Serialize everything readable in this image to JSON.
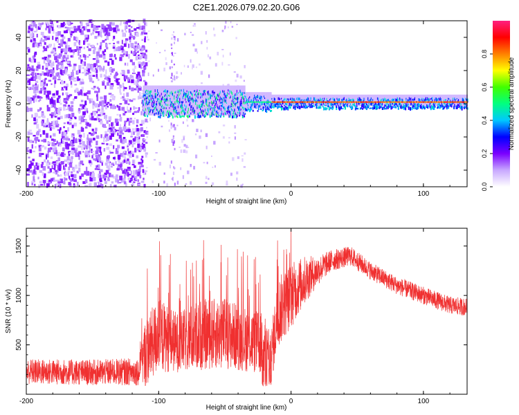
{
  "title": "C2E1.2026.079.02.20.G06",
  "colors": {
    "snr_line": "#f03030",
    "axis": "#000000",
    "background": "#ffffff"
  },
  "chart_data": [
    {
      "type": "heatmap",
      "name": "spectrogram",
      "xlabel": "Height of straight line (km)",
      "ylabel": "Frequency (Hz)",
      "xlim": [
        -200,
        133
      ],
      "ylim": [
        -50,
        50
      ],
      "x_ticks": [
        -200,
        -100,
        0,
        100
      ],
      "y_ticks": [
        -40,
        -20,
        0,
        20,
        40
      ],
      "grid": false,
      "description_of_signal": {
        "noise_region_x": [
          -200,
          -110
        ],
        "sparse_region_x": [
          -110,
          -35
        ],
        "carrier_start_x": -112,
        "carrier_end_x": 133,
        "carrier_center_hz": 0,
        "sidelobe_hz": 2
      },
      "colorbar": {
        "label": "Normalized spectral amplitude",
        "range": [
          0,
          1
        ],
        "ticks": [
          "0.0",
          "0.2",
          "0.4",
          "0.6",
          "0.8"
        ],
        "tick_values": [
          0.0,
          0.2,
          0.4,
          0.6,
          0.8
        ],
        "colormap": [
          "#ffffff",
          "#c8a8ff",
          "#7a00ff",
          "#0000ff",
          "#00c8ff",
          "#00ff80",
          "#40ff00",
          "#ffff00",
          "#ff8000",
          "#ff0000",
          "#ff2080"
        ]
      }
    },
    {
      "type": "line",
      "name": "snr",
      "xlabel": "Height of straight line (km)",
      "ylabel": "SNR (10 * v/v)",
      "xlim": [
        -200,
        133
      ],
      "ylim": [
        0,
        1680
      ],
      "x_ticks": [
        -200,
        -100,
        0,
        100
      ],
      "y_ticks": [
        500,
        1000,
        1500
      ],
      "grid": false,
      "trend_keypoints": {
        "x": [
          -200,
          -150,
          -115,
          -110,
          -100,
          -85,
          -70,
          -50,
          -35,
          -20,
          -15,
          -10,
          0,
          10,
          20,
          30,
          45,
          60,
          80,
          100,
          120,
          133
        ],
        "mean": [
          230,
          220,
          230,
          420,
          600,
          520,
          600,
          620,
          560,
          500,
          380,
          820,
          1000,
          1150,
          1250,
          1350,
          1400,
          1250,
          1100,
          1000,
          900,
          880
        ],
        "spread": [
          130,
          130,
          140,
          350,
          380,
          300,
          360,
          360,
          330,
          320,
          280,
          360,
          330,
          250,
          150,
          110,
          100,
          90,
          90,
          90,
          90,
          90
        ]
      }
    }
  ]
}
